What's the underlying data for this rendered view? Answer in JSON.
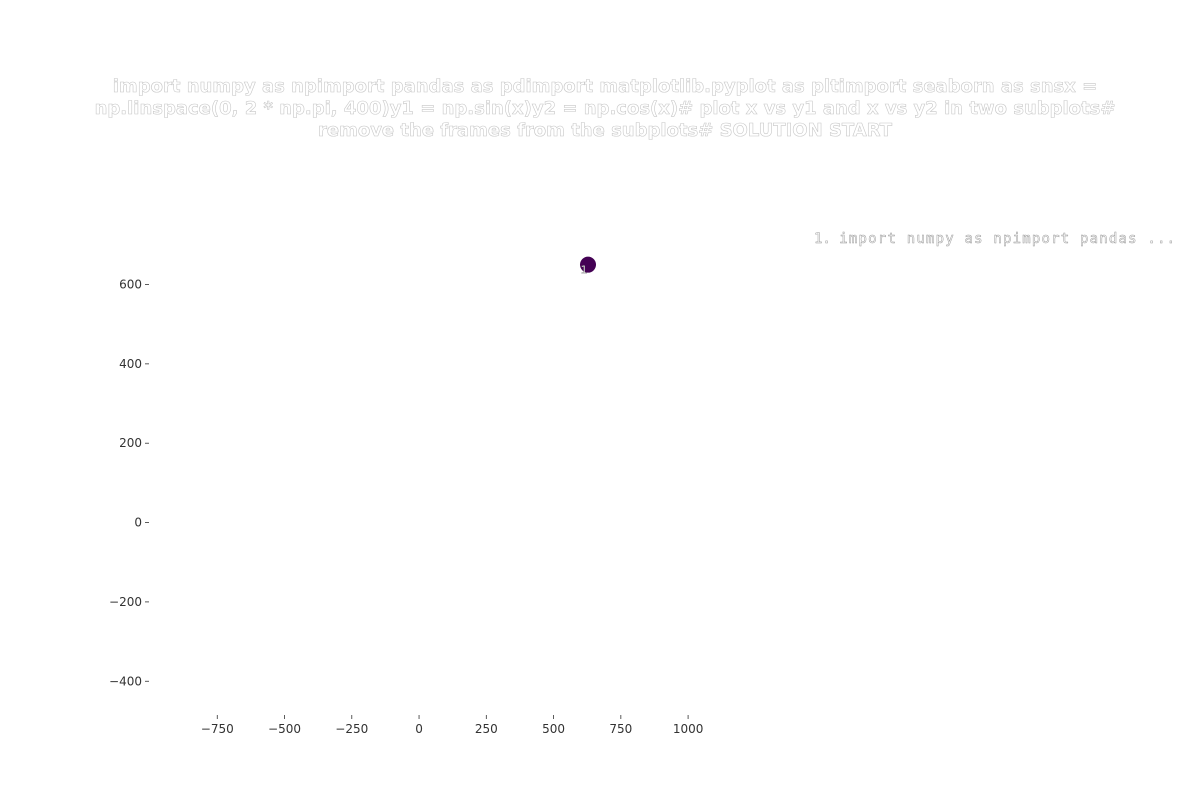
{
  "chart_data": {
    "type": "scatter",
    "title": "import numpy as npimport pandas as pdimport matplotlib.pyplot as pltimport seaborn as snsx = np.linspace(0, 2 * np.pi, 400)y1 = np.sin(x)y2 = np.cos(x)# plot x vs y1 and x vs y2 in two subplots# remove the frames from the subplots# SOLUTION START",
    "xlabel": "",
    "ylabel": "",
    "xlim": [
      -1000,
      1100
    ],
    "ylim": [
      -480,
      750
    ],
    "x_ticks": [
      -750,
      -500,
      -250,
      0,
      250,
      500,
      750,
      1000
    ],
    "x_tick_labels": [
      "−750",
      "−500",
      "−250",
      "0",
      "250",
      "500",
      "750",
      "1000"
    ],
    "y_ticks": [
      -400,
      -200,
      0,
      200,
      400,
      600
    ],
    "y_tick_labels": [
      "−400",
      "−200",
      "0",
      "200",
      "400",
      "600"
    ],
    "grid": false,
    "frame": false,
    "legend_position": "top-right",
    "legend_entries": [
      {
        "marker": "1.",
        "label": "import numpy as npimport pandas ..."
      }
    ],
    "points": [
      {
        "x": 628,
        "y": 650,
        "label": "1",
        "color": "#440154"
      }
    ]
  }
}
